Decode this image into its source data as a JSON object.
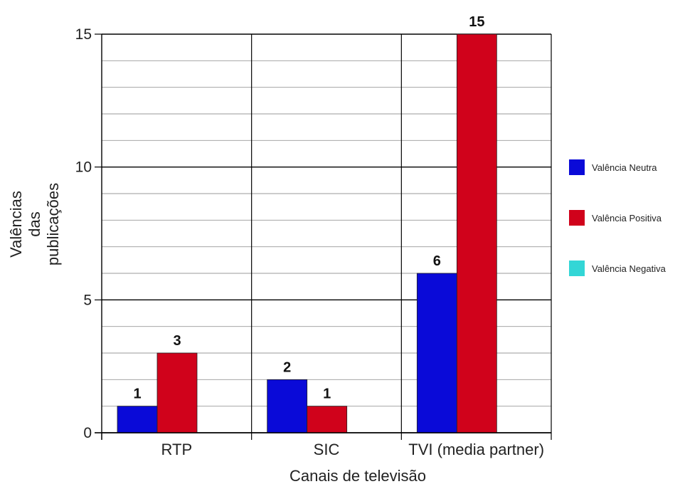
{
  "chart_data": {
    "type": "bar",
    "categories": [
      "RTP",
      "SIC",
      "TVI (media partner)"
    ],
    "series": [
      {
        "name": "Valência Neutra",
        "color": "#0a0ad8",
        "values": [
          1,
          2,
          6
        ]
      },
      {
        "name": "Valência Positiva",
        "color": "#d0021b",
        "values": [
          3,
          1,
          15
        ]
      },
      {
        "name": "Valência Negativa",
        "color": "#33d6d6",
        "values": [
          0,
          0,
          0
        ]
      }
    ],
    "xlabel": "Canais de televisão",
    "ylabel_lines": [
      "Valências",
      "das",
      "publicações"
    ],
    "ylim": [
      0,
      15
    ],
    "major_ticks": [
      0,
      5,
      10,
      15
    ],
    "minor_step": 1,
    "grid": true,
    "legend_position": "right"
  }
}
